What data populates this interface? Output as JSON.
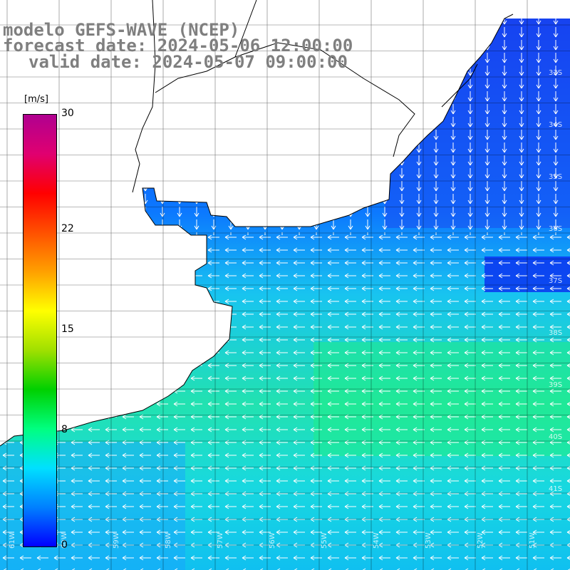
{
  "title": {
    "line1": "modelo GEFS-WAVE (NCEP)",
    "line2": "forecast date: 2024-05-06 12:00:00",
    "line3": "valid date: 2024-05-07 09:00:00"
  },
  "colorbar": {
    "units": "[m/s]",
    "ticks": [
      "30",
      "22",
      "15",
      "8",
      "0"
    ],
    "tick_values": [
      30,
      22,
      15,
      8,
      0
    ],
    "colors": [
      "#0000ff",
      "#0080ff",
      "#00e0ff",
      "#00ff80",
      "#00d000",
      "#a0e000",
      "#ffff00",
      "#ffa000",
      "#ff5000",
      "#ff0000",
      "#e00070",
      "#b00090"
    ]
  },
  "map": {
    "lat_labels": [
      "33S",
      "34S",
      "35S",
      "36S",
      "37S",
      "38S",
      "39S",
      "40S",
      "41S"
    ],
    "lon_labels": [
      "61W",
      "60W",
      "59W",
      "58W",
      "57W",
      "56W",
      "55W",
      "54W",
      "53W",
      "52W",
      "51W"
    ],
    "ocean_colors": {
      "low": "#1a3cff",
      "mid_low": "#0b8cff",
      "mid": "#16c8f0",
      "high": "#22e6a0",
      "highest": "#1ef27a"
    }
  }
}
